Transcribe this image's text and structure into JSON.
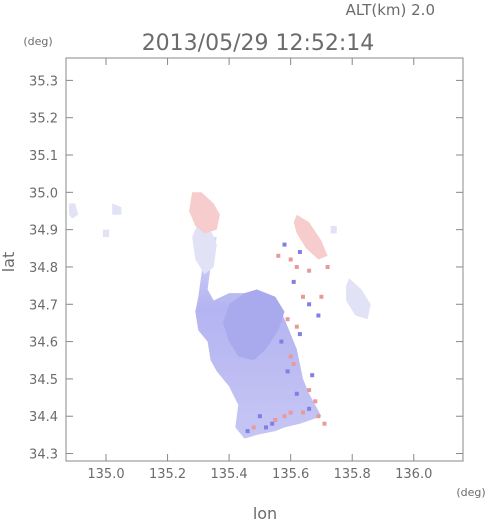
{
  "header": {
    "altitude_label": "ALT(km) 2.0",
    "timestamp": "2013/05/29 12:52:14"
  },
  "chart_data": {
    "type": "heatmap",
    "title": "2013/05/29 12:52:14",
    "xlabel": "lon",
    "ylabel": "lat",
    "xunit": "(deg)",
    "yunit": "(deg)",
    "xlim": [
      134.87,
      136.16
    ],
    "ylim": [
      34.28,
      35.36
    ],
    "x_ticks": [
      "135.0",
      "135.2",
      "135.4",
      "135.6",
      "135.8",
      "136.0"
    ],
    "x_tick_values": [
      135.0,
      135.2,
      135.4,
      135.6,
      135.8,
      136.0
    ],
    "y_ticks": [
      "35.3",
      "35.2",
      "35.1",
      "35.0",
      "34.9",
      "34.8",
      "34.7",
      "34.6",
      "34.5",
      "34.4",
      "34.3"
    ],
    "y_tick_values": [
      35.3,
      35.2,
      35.1,
      35.0,
      34.9,
      34.8,
      34.7,
      34.6,
      34.5,
      34.4,
      34.3
    ],
    "grid": false,
    "colors": {
      "negative": "#9999ee",
      "positive": "#ee9999",
      "neutral": "#e6e6f6"
    },
    "regions": [
      {
        "sign": "negative",
        "polygon": [
          [
            135.36,
            34.88
          ],
          [
            135.34,
            34.8
          ],
          [
            135.33,
            34.74
          ],
          [
            135.35,
            34.71
          ],
          [
            135.4,
            34.73
          ],
          [
            135.47,
            34.73
          ],
          [
            135.52,
            34.71
          ],
          [
            135.56,
            34.7
          ],
          [
            135.58,
            34.66
          ],
          [
            135.6,
            34.62
          ],
          [
            135.62,
            34.58
          ],
          [
            135.63,
            34.54
          ],
          [
            135.64,
            34.5
          ],
          [
            135.66,
            34.46
          ],
          [
            135.68,
            34.43
          ],
          [
            135.7,
            34.4
          ],
          [
            135.63,
            34.38
          ],
          [
            135.58,
            34.37
          ],
          [
            135.55,
            34.36
          ],
          [
            135.49,
            34.35
          ],
          [
            135.45,
            34.34
          ],
          [
            135.42,
            34.37
          ],
          [
            135.43,
            34.43
          ],
          [
            135.4,
            34.48
          ],
          [
            135.36,
            34.52
          ],
          [
            135.34,
            34.55
          ],
          [
            135.33,
            34.6
          ],
          [
            135.3,
            34.63
          ],
          [
            135.29,
            34.68
          ],
          [
            135.3,
            34.72
          ],
          [
            135.31,
            34.78
          ],
          [
            135.32,
            34.84
          ],
          [
            135.33,
            34.88
          ]
        ]
      },
      {
        "sign": "negative",
        "polygon": [
          [
            135.49,
            34.74
          ],
          [
            135.55,
            34.72
          ],
          [
            135.58,
            34.68
          ],
          [
            135.56,
            34.63
          ],
          [
            135.52,
            34.58
          ],
          [
            135.48,
            34.55
          ],
          [
            135.43,
            34.56
          ],
          [
            135.4,
            34.6
          ],
          [
            135.38,
            34.65
          ],
          [
            135.4,
            34.7
          ],
          [
            135.45,
            34.73
          ]
        ]
      },
      {
        "sign": "neutral",
        "polygon": [
          [
            135.3,
            34.92
          ],
          [
            135.34,
            34.9
          ],
          [
            135.36,
            34.86
          ],
          [
            135.35,
            34.8
          ],
          [
            135.32,
            34.78
          ],
          [
            135.29,
            34.82
          ],
          [
            135.28,
            34.88
          ]
        ]
      },
      {
        "sign": "positive",
        "polygon": [
          [
            135.28,
            35.0
          ],
          [
            135.31,
            35.0
          ],
          [
            135.35,
            34.97
          ],
          [
            135.37,
            34.94
          ],
          [
            135.36,
            34.9
          ],
          [
            135.32,
            34.89
          ],
          [
            135.29,
            34.91
          ],
          [
            135.27,
            34.95
          ]
        ]
      },
      {
        "sign": "positive",
        "polygon": [
          [
            135.62,
            34.94
          ],
          [
            135.66,
            34.92
          ],
          [
            135.7,
            34.87
          ],
          [
            135.72,
            34.83
          ],
          [
            135.69,
            34.82
          ],
          [
            135.65,
            34.85
          ],
          [
            135.62,
            34.89
          ],
          [
            135.61,
            34.92
          ]
        ]
      },
      {
        "sign": "neutral",
        "polygon": [
          [
            135.79,
            34.77
          ],
          [
            135.83,
            34.74
          ],
          [
            135.86,
            34.7
          ],
          [
            135.85,
            34.66
          ],
          [
            135.81,
            34.67
          ],
          [
            135.78,
            34.71
          ],
          [
            135.78,
            34.75
          ]
        ]
      },
      {
        "sign": "neutral",
        "polygon": [
          [
            134.88,
            34.97
          ],
          [
            134.9,
            34.97
          ],
          [
            134.91,
            34.94
          ],
          [
            134.89,
            34.93
          ],
          [
            134.88,
            34.94
          ]
        ]
      },
      {
        "sign": "neutral",
        "polygon": [
          [
            135.02,
            34.97
          ],
          [
            135.05,
            34.96
          ],
          [
            135.05,
            34.94
          ],
          [
            135.02,
            34.94
          ]
        ]
      },
      {
        "sign": "neutral",
        "polygon": [
          [
            134.99,
            34.9
          ],
          [
            135.01,
            34.9
          ],
          [
            135.01,
            34.88
          ],
          [
            134.99,
            34.88
          ]
        ]
      },
      {
        "sign": "neutral",
        "polygon": [
          [
            135.73,
            34.91
          ],
          [
            135.75,
            34.91
          ],
          [
            135.75,
            34.89
          ],
          [
            135.73,
            34.89
          ]
        ]
      }
    ],
    "speckles": [
      {
        "sign": "positive",
        "points": [
          [
            135.6,
            34.82
          ],
          [
            135.62,
            34.8
          ],
          [
            135.66,
            34.79
          ],
          [
            135.64,
            34.72
          ],
          [
            135.7,
            34.72
          ],
          [
            135.59,
            34.66
          ],
          [
            135.62,
            34.64
          ],
          [
            135.6,
            34.56
          ],
          [
            135.66,
            34.47
          ],
          [
            135.68,
            34.44
          ],
          [
            135.6,
            34.41
          ],
          [
            135.58,
            34.4
          ],
          [
            135.55,
            34.39
          ],
          [
            135.48,
            34.37
          ],
          [
            135.71,
            34.38
          ],
          [
            135.69,
            34.4
          ],
          [
            135.64,
            34.41
          ],
          [
            135.56,
            34.83
          ],
          [
            135.72,
            34.8
          ],
          [
            135.61,
            34.54
          ]
        ]
      },
      {
        "sign": "negative",
        "points": [
          [
            135.58,
            34.86
          ],
          [
            135.63,
            34.84
          ],
          [
            135.61,
            34.76
          ],
          [
            135.66,
            34.7
          ],
          [
            135.57,
            34.6
          ],
          [
            135.63,
            34.62
          ],
          [
            135.59,
            34.52
          ],
          [
            135.67,
            34.51
          ],
          [
            135.62,
            34.46
          ],
          [
            135.5,
            34.4
          ],
          [
            135.54,
            34.38
          ],
          [
            135.46,
            34.36
          ],
          [
            135.52,
            34.37
          ],
          [
            135.66,
            34.42
          ],
          [
            135.69,
            34.67
          ]
        ]
      }
    ]
  }
}
